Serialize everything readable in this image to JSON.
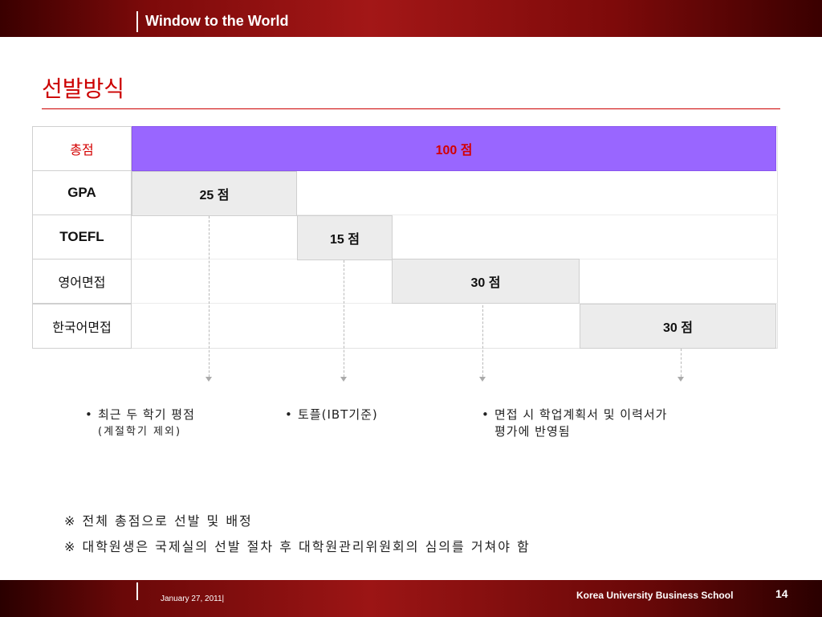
{
  "header": {
    "title": "Window to the World"
  },
  "page": {
    "title": "선발방식"
  },
  "table": {
    "rows": [
      {
        "label": "총점",
        "value": "100 점"
      },
      {
        "label": "GPA",
        "value": "25 점"
      },
      {
        "label": "TOEFL",
        "value": "15 점"
      },
      {
        "label": "영어면접",
        "value": "30 점"
      },
      {
        "label": "한국어면접",
        "value": "30 점"
      }
    ]
  },
  "notes": [
    {
      "bullet": "•",
      "text": "최근 두 학기 평점",
      "sub": "(계절학기 제외)"
    },
    {
      "bullet": "•",
      "text": "토플(IBT기준)"
    },
    {
      "bullet": "•",
      "text": "면접 시 학업계획서 및 이력서가",
      "text2": "평가에 반영됨"
    }
  ],
  "footnotes": [
    "※ 전체 총점으로 선발 및 배정",
    "※ 대학원생은 국제실의 선발 절차 후 대학원관리위원회의 심의를 거쳐야 함"
  ],
  "footer": {
    "date": "January 27, 2011|",
    "school": "Korea University Business School",
    "page_number": "14"
  },
  "colors": {
    "accent": "#cc0000",
    "total_fill": "#9966ff",
    "cell_fill": "#ececec"
  }
}
